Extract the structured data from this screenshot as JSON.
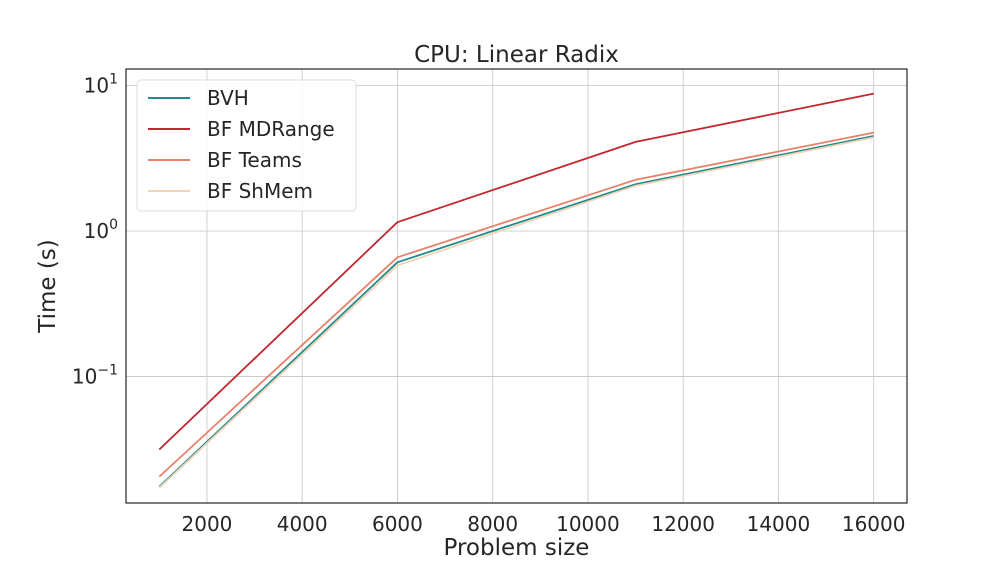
{
  "chart_data": {
    "type": "line",
    "title": "CPU: Linear Radix",
    "xlabel": "Problem size",
    "ylabel": "Time (s)",
    "yscale": "log",
    "xlim": [
      300,
      16700
    ],
    "ylim": [
      0.0135,
      13.0
    ],
    "xticks": [
      2000,
      4000,
      6000,
      8000,
      10000,
      12000,
      14000,
      16000
    ],
    "yticks": [
      {
        "value": 10,
        "base": "10",
        "exp": "1"
      },
      {
        "value": 1,
        "base": "10",
        "exp": "0"
      },
      {
        "value": 0.1,
        "base": "10",
        "exp": "−1"
      }
    ],
    "grid": true,
    "legend_position": "upper-left",
    "x": [
      1000,
      6000,
      11000,
      16000
    ],
    "series": [
      {
        "name": "BVH",
        "color": "#1e8c8c",
        "values": [
          0.0175,
          0.61,
          2.1,
          4.5
        ]
      },
      {
        "name": "BF MDRange",
        "color": "#c0282d",
        "values": [
          0.0315,
          1.15,
          4.1,
          8.8
        ]
      },
      {
        "name": "BF Teams",
        "color": "#e8806a",
        "values": [
          0.0205,
          0.66,
          2.25,
          4.75
        ]
      },
      {
        "name": "BF ShMem",
        "color": "#f3d3b6",
        "values": [
          0.0172,
          0.58,
          2.05,
          4.4
        ]
      }
    ]
  }
}
